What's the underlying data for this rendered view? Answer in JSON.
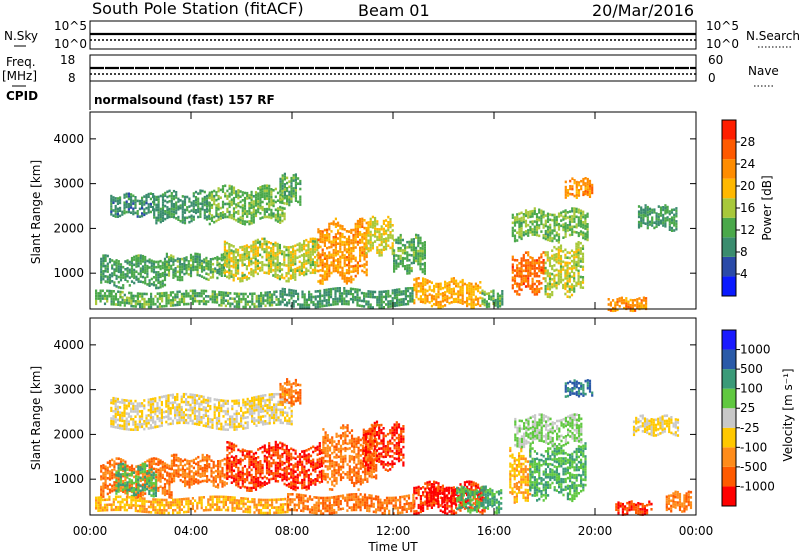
{
  "header": {
    "station": "South Pole Station (fitACF)",
    "beam": "Beam 01",
    "date": "20/Mar/2016"
  },
  "aux_panels": {
    "nsky_label": "N.Sky",
    "nsky_ticks": [
      "10^5",
      "10^0"
    ],
    "nsearch_label": "N.Search",
    "nsearch_ticks": [
      "10^5",
      "10^0"
    ],
    "freq_label": "Freq.",
    "freq_unit": "[MHz]",
    "freq_ticks": [
      "18",
      "8"
    ],
    "nave_label": "Nave",
    "nave_ticks": [
      "60",
      "0"
    ],
    "cpid_label": "CPID",
    "cpid_value": "normalsound (fast) 157 RF"
  },
  "colors": {
    "power": [
      "#0a1aff",
      "#2a4aa8",
      "#3a8c6e",
      "#4aa84a",
      "#a8c83a",
      "#ffb800",
      "#ff8c00",
      "#ff5a00",
      "#ff1e00"
    ],
    "velocity": [
      "#ff0000",
      "#ff5a00",
      "#ff8c1a",
      "#ffc800",
      "#c8c8c8",
      "#60c840",
      "#3a9a78",
      "#2a5aa8",
      "#1a1aff"
    ]
  },
  "chart_data": [
    {
      "type": "heatmap",
      "name": "power",
      "xlabel": "",
      "ylabel": "Slant Range [km]",
      "x_ticks": [
        "00:00",
        "04:00",
        "08:00",
        "12:00",
        "16:00",
        "20:00",
        "00:00"
      ],
      "xlim": [
        0,
        24
      ],
      "ylim": [
        200,
        4600
      ],
      "y_ticks": [
        "1000",
        "2000",
        "3000",
        "4000"
      ],
      "colorbar_label": "Power [dB]",
      "colorbar_ticks": [
        "4",
        "8",
        "12",
        "16",
        "20",
        "24",
        "28"
      ],
      "colorbar_range": [
        0,
        31
      ],
      "regions": [
        {
          "t": [
            0.8,
            2.5
          ],
          "r": [
            2300,
            2750
          ],
          "v": 9
        },
        {
          "t": [
            2.5,
            4.7
          ],
          "r": [
            2200,
            2800
          ],
          "v": 10
        },
        {
          "t": [
            4.7,
            7.7
          ],
          "r": [
            2200,
            2900
          ],
          "v": 13
        },
        {
          "t": [
            7.5,
            8.3
          ],
          "r": [
            2600,
            3200
          ],
          "v": 12
        },
        {
          "t": [
            0.4,
            3.0
          ],
          "r": [
            750,
            1350
          ],
          "v": 11
        },
        {
          "t": [
            3.0,
            5.3
          ],
          "r": [
            900,
            1400
          ],
          "v": 12
        },
        {
          "t": [
            5.3,
            9.0
          ],
          "r": [
            900,
            1700
          ],
          "v": 16
        },
        {
          "t": [
            9.0,
            11.0
          ],
          "r": [
            900,
            2100
          ],
          "v": 22
        },
        {
          "t": [
            10.9,
            12.0
          ],
          "r": [
            1500,
            2200
          ],
          "v": 17
        },
        {
          "t": [
            12.0,
            13.3
          ],
          "r": [
            1100,
            1800
          ],
          "v": 12
        },
        {
          "t": [
            12.8,
            15.5
          ],
          "r": [
            300,
            850
          ],
          "v": 20
        },
        {
          "t": [
            15.5,
            16.3
          ],
          "r": [
            300,
            600
          ],
          "v": 12
        },
        {
          "t": [
            16.7,
            18.0
          ],
          "r": [
            600,
            1400
          ],
          "v": 25
        },
        {
          "t": [
            18.0,
            19.5
          ],
          "r": [
            600,
            1600
          ],
          "v": 16
        },
        {
          "t": [
            16.7,
            19.7
          ],
          "r": [
            1800,
            2400
          ],
          "v": 13
        },
        {
          "t": [
            18.8,
            19.9
          ],
          "r": [
            2700,
            3100
          ],
          "v": 22
        },
        {
          "t": [
            21.7,
            23.2
          ],
          "r": [
            2000,
            2500
          ],
          "v": 10
        },
        {
          "t": [
            0.2,
            7.5
          ],
          "r": [
            300,
            600
          ],
          "v": 12
        },
        {
          "t": [
            7.5,
            12.8
          ],
          "r": [
            300,
            650
          ],
          "v": 10
        },
        {
          "t": [
            20.5,
            22.0
          ],
          "r": [
            200,
            450
          ],
          "v": 22
        }
      ]
    },
    {
      "type": "heatmap",
      "name": "velocity",
      "xlabel": "Time UT",
      "ylabel": "Slant Range [km]",
      "x_ticks": [
        "00:00",
        "04:00",
        "08:00",
        "12:00",
        "16:00",
        "20:00",
        "00:00"
      ],
      "xlim": [
        0,
        24
      ],
      "ylim": [
        200,
        4600
      ],
      "y_ticks": [
        "1000",
        "2000",
        "3000",
        "4000"
      ],
      "colorbar_label": "Velocity [m s⁻¹]",
      "colorbar_ticks": [
        "-1000",
        "-500",
        "-100",
        "-25",
        "25",
        "100",
        "500",
        "1000"
      ],
      "colorbar_range": [
        0,
        9
      ],
      "regions": [
        {
          "t": [
            0.8,
            8.0
          ],
          "r": [
            2200,
            2850
          ],
          "v": 4
        },
        {
          "t": [
            7.5,
            8.3
          ],
          "r": [
            2700,
            3200
          ],
          "v": 2
        },
        {
          "t": [
            0.4,
            3.2
          ],
          "r": [
            650,
            1400
          ],
          "v": 2
        },
        {
          "t": [
            1.0,
            2.6
          ],
          "r": [
            700,
            1300
          ],
          "v": 6
        },
        {
          "t": [
            3.2,
            5.4
          ],
          "r": [
            900,
            1500
          ],
          "v": 2
        },
        {
          "t": [
            5.4,
            9.2
          ],
          "r": [
            850,
            1750
          ],
          "v": 1
        },
        {
          "t": [
            9.2,
            11.3
          ],
          "r": [
            900,
            2100
          ],
          "v": 2
        },
        {
          "t": [
            10.8,
            12.4
          ],
          "r": [
            1300,
            2200
          ],
          "v": 1
        },
        {
          "t": [
            12.8,
            15.6
          ],
          "r": [
            300,
            900
          ],
          "v": 1
        },
        {
          "t": [
            13.3,
            14.5
          ],
          "r": [
            500,
            800
          ],
          "v": 0
        },
        {
          "t": [
            14.5,
            16.3
          ],
          "r": [
            300,
            800
          ],
          "v": 6
        },
        {
          "t": [
            16.6,
            17.4
          ],
          "r": [
            600,
            1600
          ],
          "v": 3
        },
        {
          "t": [
            17.4,
            19.6
          ],
          "r": [
            600,
            1700
          ],
          "v": 6
        },
        {
          "t": [
            16.8,
            19.5
          ],
          "r": [
            1800,
            2400
          ],
          "v": 5
        },
        {
          "t": [
            18.8,
            19.9
          ],
          "r": [
            2900,
            3200
          ],
          "v": 7
        },
        {
          "t": [
            21.5,
            23.3
          ],
          "r": [
            2000,
            2400
          ],
          "v": 4
        },
        {
          "t": [
            0.2,
            7.8
          ],
          "r": [
            300,
            600
          ],
          "v": 3
        },
        {
          "t": [
            7.8,
            12.8
          ],
          "r": [
            300,
            650
          ],
          "v": 2
        },
        {
          "t": [
            20.8,
            22.2
          ],
          "r": [
            250,
            500
          ],
          "v": 1
        },
        {
          "t": [
            22.8,
            23.8
          ],
          "r": [
            300,
            700
          ],
          "v": 2
        }
      ]
    }
  ]
}
